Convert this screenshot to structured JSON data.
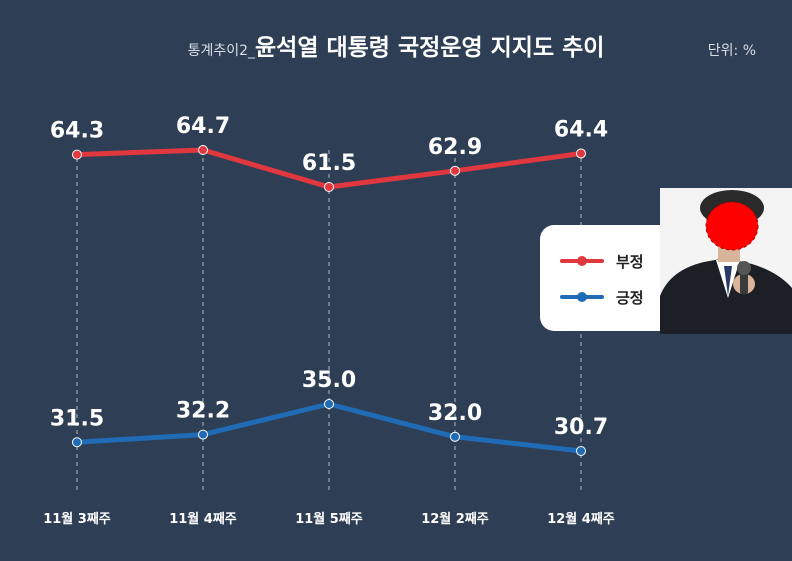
{
  "header": {
    "title_prefix": "통계추이2_",
    "title_main": "윤석열 대통령 국정운영 지지도 추이",
    "unit": "단위: %"
  },
  "colors": {
    "background": "#2e3e54",
    "negative": "#e0383e",
    "positive": "#1f6bb5"
  },
  "legend": {
    "placement": "right-middle",
    "items": [
      {
        "label": "부정",
        "color": "#e0383e"
      },
      {
        "label": "긍정",
        "color": "#1f6bb5"
      }
    ]
  },
  "chart_data": {
    "type": "line",
    "title": "윤석열 대통령 국정운영 지지도 추이",
    "categories": [
      "11월 3째주",
      "11월 4째주",
      "11월 5째주",
      "12월 2째주",
      "12월 4째주"
    ],
    "series": [
      {
        "name": "부정",
        "values": [
          64.3,
          64.7,
          61.5,
          62.9,
          64.4
        ]
      },
      {
        "name": "긍정",
        "values": [
          31.5,
          32.2,
          35.0,
          32.0,
          30.7
        ]
      }
    ],
    "grid": "vertical dashed",
    "data_labels": true
  }
}
